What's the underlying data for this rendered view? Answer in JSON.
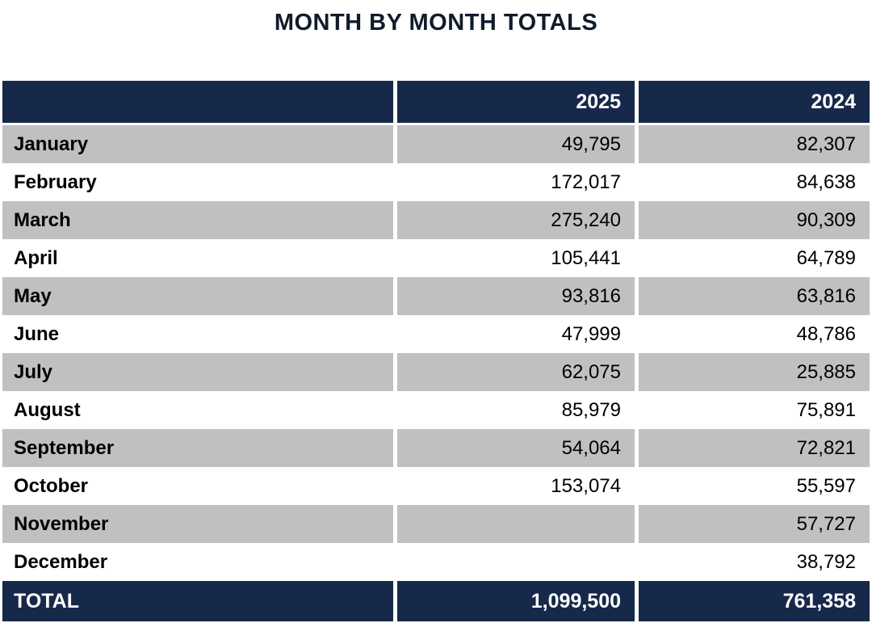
{
  "title": "MONTH BY MONTH TOTALS",
  "chart_data": {
    "type": "table",
    "title": "MONTH BY MONTH TOTALS",
    "columns": [
      "",
      "2025",
      "2024"
    ],
    "rows": [
      {
        "label": "January",
        "y2025": "49,795",
        "y2024": "82,307"
      },
      {
        "label": "February",
        "y2025": "172,017",
        "y2024": "84,638"
      },
      {
        "label": "March",
        "y2025": "275,240",
        "y2024": "90,309"
      },
      {
        "label": "April",
        "y2025": "105,441",
        "y2024": "64,789"
      },
      {
        "label": "May",
        "y2025": "93,816",
        "y2024": "63,816"
      },
      {
        "label": "June",
        "y2025": "47,999",
        "y2024": "48,786"
      },
      {
        "label": "July",
        "y2025": "62,075",
        "y2024": "25,885"
      },
      {
        "label": "August",
        "y2025": "85,979",
        "y2024": "75,891"
      },
      {
        "label": "September",
        "y2025": "54,064",
        "y2024": "72,821"
      },
      {
        "label": "October",
        "y2025": "153,074",
        "y2024": "55,597"
      },
      {
        "label": "November",
        "y2025": "",
        "y2024": "57,727"
      },
      {
        "label": "December",
        "y2025": "",
        "y2024": "38,792"
      }
    ],
    "total": {
      "label": "TOTAL",
      "y2025": "1,099,500",
      "y2024": "761,358"
    },
    "layout": {
      "shaded_rows": "odd months (January, March, May, July, September, November)",
      "value_alignment": "right"
    },
    "colors": {
      "header_bg": "#17294a",
      "header_text": "#ffffff",
      "row_alt_bg": "#c0c0c0",
      "row_bg": "#ffffff",
      "body_text": "#000000"
    }
  }
}
